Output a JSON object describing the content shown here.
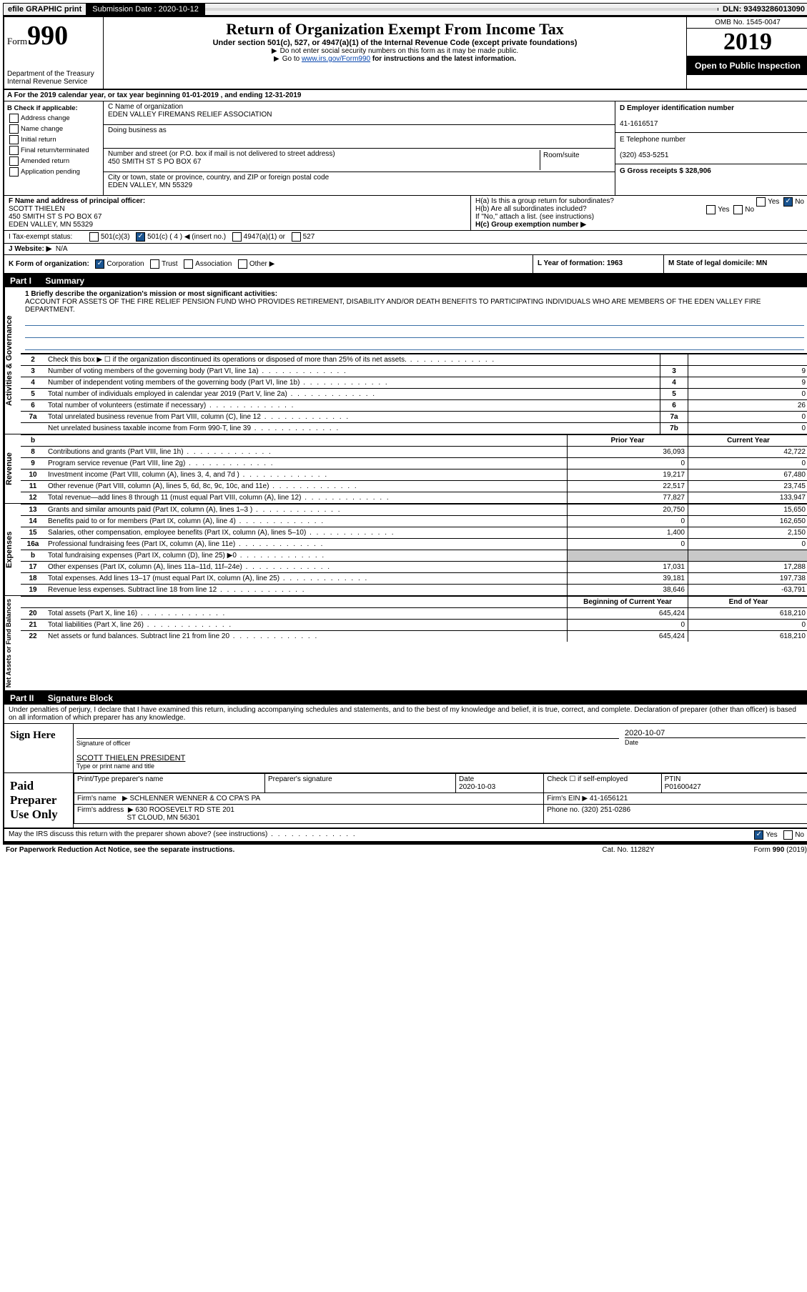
{
  "topbar": {
    "efile": "efile GRAPHIC print",
    "submission_label": "Submission Date : 2020-10-12",
    "dln_label": "DLN: 93493286013090"
  },
  "header": {
    "form_label": "Form",
    "form_number": "990",
    "title": "Return of Organization Exempt From Income Tax",
    "subtitle": "Under section 501(c), 527, or 4947(a)(1) of the Internal Revenue Code (except private foundations)",
    "note1": "Do not enter social security numbers on this form as it may be made public.",
    "note2_prefix": "Go to ",
    "note2_link": "www.irs.gov/Form990",
    "note2_suffix": " for instructions and the latest information.",
    "dept": "Department of the Treasury\nInternal Revenue Service",
    "omb": "OMB No. 1545-0047",
    "year": "2019",
    "inspection": "Open to Public Inspection"
  },
  "row_a": "A For the 2019 calendar year, or tax year beginning 01-01-2019    , and ending 12-31-2019",
  "check_b": {
    "header": "B Check if applicable:",
    "items": [
      "Address change",
      "Name change",
      "Initial return",
      "Final return/terminated",
      "Amended return",
      "Application pending"
    ]
  },
  "org": {
    "name_label": "C Name of organization",
    "name": "EDEN VALLEY FIREMANS RELIEF ASSOCIATION",
    "dba_label": "Doing business as",
    "dba": "",
    "addr_label": "Number and street (or P.O. box if mail is not delivered to street address)",
    "addr": "450 SMITH ST S PO BOX 67",
    "room_label": "Room/suite",
    "city_label": "City or town, state or province, country, and ZIP or foreign postal code",
    "city": "EDEN VALLEY, MN  55329"
  },
  "emp": {
    "ein_label": "D Employer identification number",
    "ein": "41-1616517",
    "phone_label": "E Telephone number",
    "phone": "(320) 453-5251",
    "gross_label": "G Gross receipts $ 328,906"
  },
  "officer": {
    "label": "F  Name and address of principal officer:",
    "name": "SCOTT THIELEN",
    "addr1": "450 SMITH ST S PO BOX 67",
    "addr2": "EDEN VALLEY, MN  55329"
  },
  "h": {
    "a_label": "H(a)  Is this a group return for subordinates?",
    "a_yes": "Yes",
    "a_no": "No",
    "b_label": "H(b)  Are all subordinates included?",
    "b_note": "If \"No,\" attach a list. (see instructions)",
    "c_label": "H(c)  Group exemption number ▶"
  },
  "tax_status": {
    "label": "I    Tax-exempt status:",
    "opt1": "501(c)(3)",
    "opt2": "501(c) ( 4 ) ◀ (insert no.)",
    "opt3": "4947(a)(1) or",
    "opt4": "527"
  },
  "website": {
    "label": "J   Website: ▶",
    "value": "N/A"
  },
  "form_org": {
    "k_label": "K Form of organization:",
    "corp": "Corporation",
    "trust": "Trust",
    "assoc": "Association",
    "other": "Other ▶",
    "l_label": "L Year of formation: 1963",
    "m_label": "M State of legal domicile: MN"
  },
  "part1": {
    "label": "Part I",
    "title": "Summary"
  },
  "mission": {
    "line1_label": "1   Briefly describe the organization's mission or most significant activities:",
    "text": "ACCOUNT FOR ASSETS OF THE FIRE RELIEF PENSION FUND WHO PROVIDES RETIREMENT, DISABILITY AND/OR DEATH BENEFITS TO PARTICIPATING INDIVIDUALS WHO ARE MEMBERS OF THE EDEN VALLEY FIRE DEPARTMENT."
  },
  "gov_lines": [
    {
      "n": "2",
      "t": "Check this box ▶ ☐  if the organization discontinued its operations or disposed of more than 25% of its net assets.",
      "box": "",
      "v": ""
    },
    {
      "n": "3",
      "t": "Number of voting members of the governing body (Part VI, line 1a)",
      "box": "3",
      "v": "9"
    },
    {
      "n": "4",
      "t": "Number of independent voting members of the governing body (Part VI, line 1b)",
      "box": "4",
      "v": "9"
    },
    {
      "n": "5",
      "t": "Total number of individuals employed in calendar year 2019 (Part V, line 2a)",
      "box": "5",
      "v": "0"
    },
    {
      "n": "6",
      "t": "Total number of volunteers (estimate if necessary)",
      "box": "6",
      "v": "26"
    },
    {
      "n": "7a",
      "t": "Total unrelated business revenue from Part VIII, column (C), line 12",
      "box": "7a",
      "v": "0"
    },
    {
      "n": "",
      "t": "Net unrelated business taxable income from Form 990-T, line 39",
      "box": "7b",
      "v": "0"
    }
  ],
  "vtabs": {
    "gov": "Activities & Governance",
    "rev": "Revenue",
    "exp": "Expenses",
    "net": "Net Assets or Fund Balances"
  },
  "pycy": {
    "prior": "Prior Year",
    "current": "Current Year"
  },
  "rev_lines": [
    {
      "n": "8",
      "t": "Contributions and grants (Part VIII, line 1h)",
      "p": "36,093",
      "c": "42,722"
    },
    {
      "n": "9",
      "t": "Program service revenue (Part VIII, line 2g)",
      "p": "0",
      "c": "0"
    },
    {
      "n": "10",
      "t": "Investment income (Part VIII, column (A), lines 3, 4, and 7d )",
      "p": "19,217",
      "c": "67,480"
    },
    {
      "n": "11",
      "t": "Other revenue (Part VIII, column (A), lines 5, 6d, 8c, 9c, 10c, and 11e)",
      "p": "22,517",
      "c": "23,745"
    },
    {
      "n": "12",
      "t": "Total revenue—add lines 8 through 11 (must equal Part VIII, column (A), line 12)",
      "p": "77,827",
      "c": "133,947"
    }
  ],
  "exp_lines": [
    {
      "n": "13",
      "t": "Grants and similar amounts paid (Part IX, column (A), lines 1–3 )",
      "p": "20,750",
      "c": "15,650"
    },
    {
      "n": "14",
      "t": "Benefits paid to or for members (Part IX, column (A), line 4)",
      "p": "0",
      "c": "162,650"
    },
    {
      "n": "15",
      "t": "Salaries, other compensation, employee benefits (Part IX, column (A), lines 5–10)",
      "p": "1,400",
      "c": "2,150"
    },
    {
      "n": "16a",
      "t": "Professional fundraising fees (Part IX, column (A), line 11e)",
      "p": "0",
      "c": "0"
    },
    {
      "n": "b",
      "t": "Total fundraising expenses (Part IX, column (D), line 25)  ▶0",
      "p": "",
      "c": "",
      "shaded": true
    },
    {
      "n": "17",
      "t": "Other expenses (Part IX, column (A), lines 11a–11d, 11f–24e)",
      "p": "17,031",
      "c": "17,288"
    },
    {
      "n": "18",
      "t": "Total expenses. Add lines 13–17 (must equal Part IX, column (A), line 25)",
      "p": "39,181",
      "c": "197,738"
    },
    {
      "n": "19",
      "t": "Revenue less expenses. Subtract line 18 from line 12",
      "p": "38,646",
      "c": "-63,791"
    }
  ],
  "net_hdr": {
    "beg": "Beginning of Current Year",
    "end": "End of Year"
  },
  "net_lines": [
    {
      "n": "20",
      "t": "Total assets (Part X, line 16)",
      "p": "645,424",
      "c": "618,210"
    },
    {
      "n": "21",
      "t": "Total liabilities (Part X, line 26)",
      "p": "0",
      "c": "0"
    },
    {
      "n": "22",
      "t": "Net assets or fund balances. Subtract line 21 from line 20",
      "p": "645,424",
      "c": "618,210"
    }
  ],
  "part2": {
    "label": "Part II",
    "title": "Signature Block"
  },
  "perjury": "Under penalties of perjury, I declare that I have examined this return, including accompanying schedules and statements, and to the best of my knowledge and belief, it is true, correct, and complete. Declaration of preparer (other than officer) is based on all information of which preparer has any knowledge.",
  "sign": {
    "here": "Sign Here",
    "sig_label": "Signature of officer",
    "date_label": "Date",
    "date": "2020-10-07",
    "name": "SCOTT THIELEN  PRESIDENT",
    "name_label": "Type or print name and title"
  },
  "prep": {
    "label": "Paid Preparer Use Only",
    "name_lbl": "Print/Type preparer's name",
    "sig_lbl": "Preparer's signature",
    "date_lbl": "Date",
    "date": "2020-10-03",
    "self_lbl": "Check ☐ if self-employed",
    "ptin_lbl": "PTIN",
    "ptin": "P01600427",
    "firm_name_lbl": "Firm's name",
    "firm_name": "SCHLENNER WENNER & CO CPA'S PA",
    "firm_ein_lbl": "Firm's EIN ▶",
    "firm_ein": "41-1656121",
    "firm_addr_lbl": "Firm's address",
    "firm_addr1": "630 ROOSEVELT RD STE 201",
    "firm_addr2": "ST CLOUD, MN  56301",
    "firm_phone_lbl": "Phone no.",
    "firm_phone": "(320) 251-0286"
  },
  "discuss": {
    "text": "May the IRS discuss this return with the preparer shown above? (see instructions)",
    "yes": "Yes",
    "no": "No"
  },
  "footer": {
    "left": "For Paperwork Reduction Act Notice, see the separate instructions.",
    "mid": "Cat. No. 11282Y",
    "right": "Form 990 (2019)"
  },
  "colors": {
    "rule_blue": "#3a6ea5",
    "link": "#0645ad",
    "shade": "#c8c8c8"
  }
}
